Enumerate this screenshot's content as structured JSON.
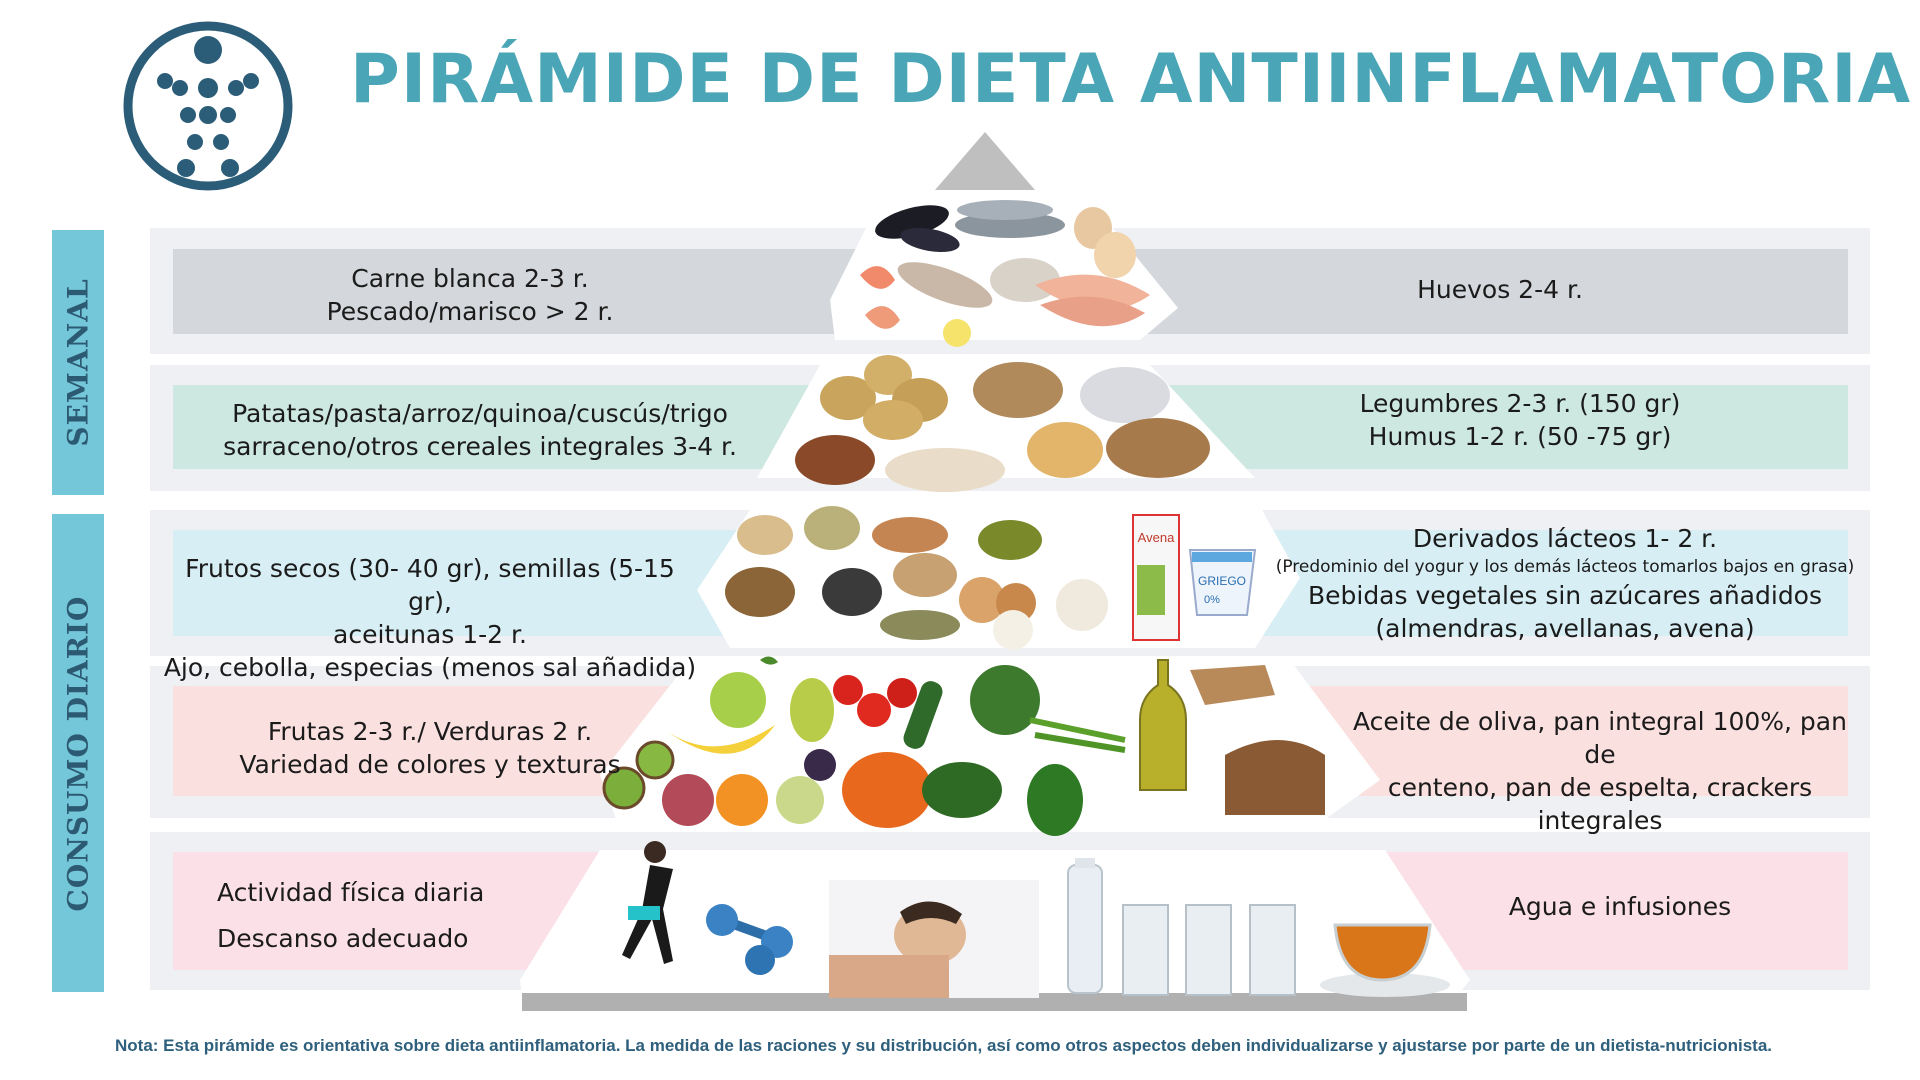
{
  "header": {
    "title": "PIRÁMIDE DE DIETA ANTIINFLAMATORIA"
  },
  "side_labels": {
    "weekly": "SEMANAL",
    "daily": "CONSUMO DIARIO"
  },
  "levels": [
    {
      "left_lines": [
        "Carne blanca 2-3 r.",
        "Pescado/marisco  > 2 r."
      ],
      "right_lines": [
        "Huevos 2-4 r."
      ]
    },
    {
      "left_lines": [
        "Patatas/pasta/arroz/quinoa/cuscús/trigo",
        "sarraceno/otros cereales integrales 3-4 r."
      ],
      "right_lines": [
        "Legumbres 2-3 r. (150 gr)",
        "Humus 1-2 r. (50 -75 gr)"
      ]
    },
    {
      "left_lines": [
        "Frutos secos (30- 40 gr), semillas (5-15 gr),",
        "aceitunas 1-2 r.",
        "Ajo, cebolla, especias (menos sal añadida)"
      ],
      "right_lines": [
        "Derivados lácteos 1- 2 r.",
        "(Predominio del yogur y los demás  lácteos tomarlos bajos en grasa)",
        "Bebidas vegetales sin azúcares añadidos",
        "(almendras, avellanas, avena)"
      ]
    },
    {
      "left_lines": [
        "Frutas 2-3 r./ Verduras 2 r.",
        "Variedad de colores y texturas"
      ],
      "right_lines": [
        "Aceite de oliva, pan integral 100%, pan de",
        "centeno, pan de espelta, crackers integrales"
      ]
    },
    {
      "left_lines": [
        "Actividad física diaria",
        "Descanso adecuado"
      ],
      "right_lines": [
        "Agua e infusiones"
      ]
    }
  ],
  "product_labels": {
    "oat_drink": "Avena",
    "yogurt_brand": "GRIEGO",
    "yogurt_fat": "0%"
  },
  "footer": {
    "note": "Nota: Esta pirámide es orientativa sobre dieta antiinflamatoria. La medida de las raciones y su distribución, así como otros aspectos deben individualizarse y ajustarse por parte de un dietista-nutricionista."
  },
  "colors": {
    "title": "#4aa6b6",
    "side_bar": "#74c7d9",
    "logo": "#2b5d78",
    "band_weekly_top": "#d4d7dc",
    "band_weekly_cereals": "#cde8e0",
    "band_nuts_dairy": "#d6eef4",
    "band_fruits_oil": "#fbe0e0",
    "band_activity_water": "#fbe1e7"
  },
  "icons": [
    "logo-icon",
    "fish-icon",
    "egg-icon",
    "shrimp-icon",
    "chicken-icon",
    "potato-icon",
    "grain-icon",
    "legume-icon",
    "nut-icon",
    "onion-icon",
    "garlic-icon",
    "milk-carton-icon",
    "yogurt-icon",
    "apple-icon",
    "banana-icon",
    "tomato-icon",
    "pumpkin-icon",
    "broccoli-icon",
    "pepper-icon",
    "olive-oil-icon",
    "bread-icon",
    "runner-icon",
    "dumbbell-icon",
    "sleeping-person-icon",
    "water-bottle-icon",
    "water-glass-icon",
    "tea-cup-icon"
  ]
}
